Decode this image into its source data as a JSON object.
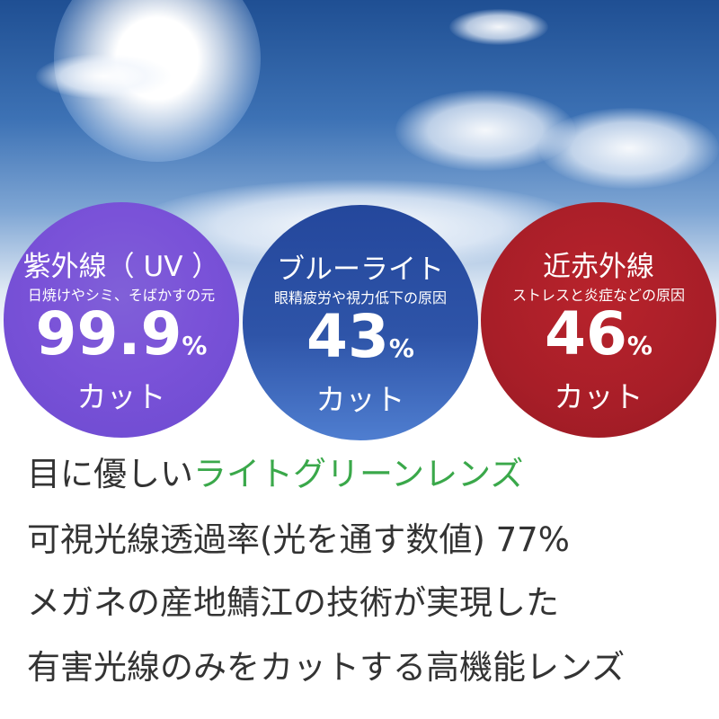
{
  "circles": [
    {
      "title": "紫外線（ UV ）",
      "subtitle": "日焼けやシミ、そばかすの元",
      "value": "99.9",
      "unit": "%",
      "label": "カット",
      "color": "#7a52d8"
    },
    {
      "title": "ブルーライト",
      "subtitle": "眼精疲労や視力低下の原因",
      "value": "43",
      "unit": "%",
      "label": "カット",
      "color": "#2e54a8"
    },
    {
      "title": "近赤外線",
      "subtitle": "ストレスと炎症などの原因",
      "value": "46",
      "unit": "%",
      "label": "カット",
      "color": "#a81e28"
    }
  ],
  "lines": {
    "l1_prefix": "目に優しい",
    "l1_highlight": "ライトグリーンレンズ",
    "l2": "可視光線透過率(光を通す数値) 77%",
    "l3": "メガネの産地鯖江の技術が実現した",
    "l4": "有害光線のみをカットする高機能レンズ"
  },
  "colors": {
    "highlight": "#3aa84a",
    "text": "#333333"
  }
}
